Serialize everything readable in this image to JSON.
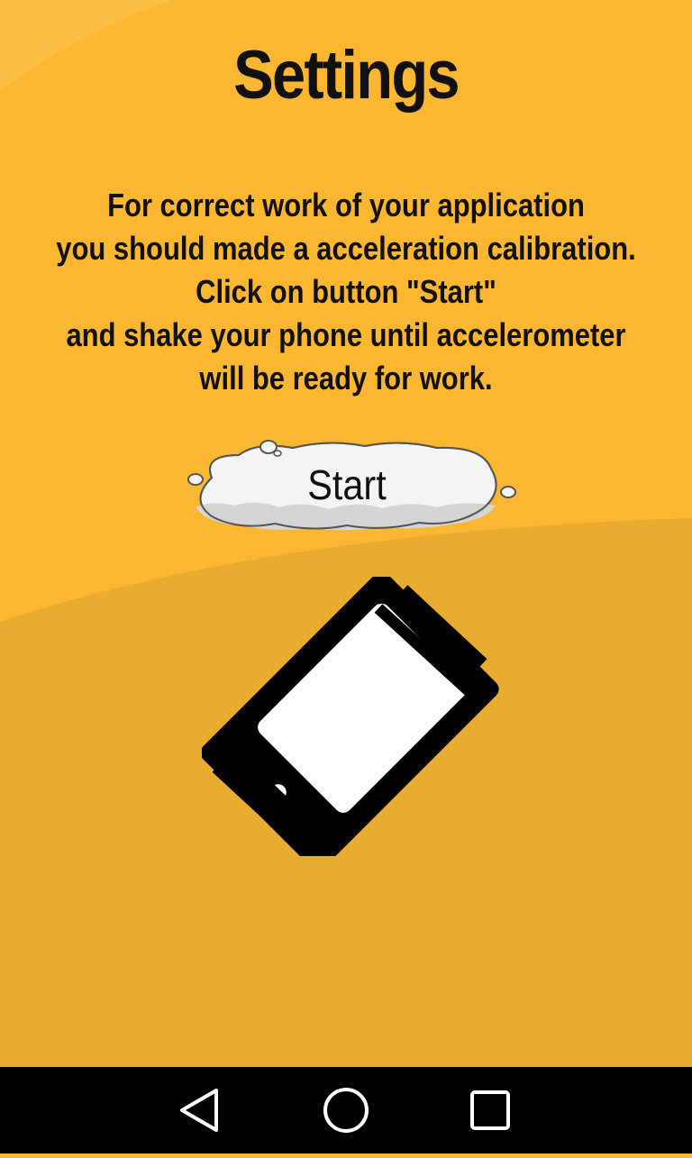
{
  "screen": {
    "title": "Settings",
    "instructions": [
      "For correct work of your application",
      "you should made a acceleration calibration.",
      "Click on button \"Start\"",
      "and shake your phone until accelerometer",
      "will be ready for work."
    ],
    "start_label": "Start"
  },
  "colors": {
    "background_top": "#FBB731",
    "background_bottom": "#E8AC30",
    "cloud": "#F4F4F4",
    "text": "#111111"
  },
  "icons": {
    "shake": "shake-phone-icon",
    "back": "back-triangle-icon",
    "home": "home-circle-icon",
    "recent": "recent-apps-square-icon"
  }
}
